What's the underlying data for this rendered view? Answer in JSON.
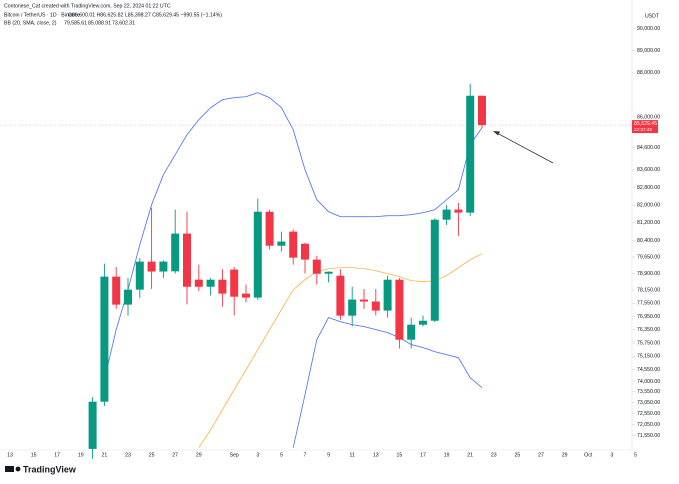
{
  "chart_data": {
    "type": "candlestick",
    "title": "Contonese_Cat created with TradingView.com, Sep 22, 2024 01:22 UTC",
    "subtitle": "Bitcoin / TetherUS · 1D · Binance",
    "ohlc_legend": "O86,600.01 H86,625.82 L85,398.27 C85,629.45 −990.55 (−1.14%)",
    "indicator": "BB (20, SMA, close, 2)",
    "indicator_values": [
      {
        "label": "79,585.61",
        "color": "#ff9800"
      },
      {
        "label": "85,088.91",
        "color": "#2962ff"
      },
      {
        "label": "73,602.31",
        "color": "#2962ff"
      }
    ],
    "y_axis_label": "USDT",
    "price_tag_label": "85,629.45",
    "countdown": "22:37:48",
    "logo": "TradingView",
    "categories": [
      "13",
      null,
      "15",
      null,
      "17",
      null,
      "19",
      null,
      "21",
      null,
      "23",
      null,
      "25",
      null,
      "27",
      null,
      "29",
      null,
      null,
      "Sep",
      null,
      "3",
      null,
      "5",
      null,
      "7",
      null,
      "9",
      null,
      "11",
      null,
      "13",
      null,
      "15",
      null,
      "17",
      null,
      "19",
      null,
      "21",
      null,
      "23",
      null,
      "25",
      null,
      "27",
      null,
      "29",
      null,
      "Oct",
      null,
      "3",
      null,
      "5"
    ],
    "up_color": "#089981",
    "down_color": "#f23645",
    "open": [
      null,
      null,
      null,
      null,
      null,
      null,
      null,
      70950,
      73090,
      78760,
      77490,
      78170,
      79440,
      78990,
      79000,
      80710,
      78620,
      78300,
      78620,
      79080,
      77990,
      77810,
      81700,
      80160,
      80800,
      80250,
      79530,
      78890,
      78800,
      76990,
      77720,
      77630,
      77220,
      78620,
      75900,
      76580,
      76760,
      81340,
      81800,
      81660,
      86960,
      null,
      null,
      null,
      null,
      null,
      null,
      null,
      null,
      null,
      null,
      null,
      null,
      null
    ],
    "high": [
      null,
      null,
      null,
      null,
      null,
      null,
      null,
      73300,
      79350,
      79200,
      78700,
      79600,
      81880,
      79500,
      81800,
      81700,
      79300,
      78700,
      79100,
      79200,
      78400,
      82300,
      81800,
      80800,
      80900,
      80300,
      79700,
      79000,
      79100,
      78300,
      78200,
      78200,
      78800,
      78700,
      76900,
      77000,
      81400,
      82000,
      82100,
      87500,
      86960,
      null,
      null,
      null,
      null,
      null,
      null,
      null,
      null,
      null,
      null,
      null,
      null,
      null
    ],
    "low": [
      null,
      null,
      null,
      null,
      null,
      null,
      null,
      70500,
      72900,
      77300,
      77000,
      77800,
      78200,
      78700,
      78900,
      77500,
      78100,
      77900,
      77400,
      77000,
      77600,
      77700,
      80000,
      79900,
      79300,
      78900,
      78400,
      78500,
      76800,
      76500,
      77300,
      77000,
      76900,
      75500,
      75500,
      76500,
      76700,
      81100,
      80600,
      81500,
      85500,
      null,
      null,
      null,
      null,
      null,
      null,
      null,
      null,
      null,
      null,
      null,
      null,
      null
    ],
    "close": [
      null,
      null,
      null,
      null,
      null,
      null,
      null,
      73090,
      78760,
      77490,
      78170,
      79440,
      78990,
      79440,
      80710,
      78300,
      78300,
      78620,
      77990,
      77850,
      77810,
      81700,
      80160,
      80350,
      79620,
      79530,
      78890,
      78980,
      76990,
      77720,
      77630,
      77220,
      78620,
      75900,
      76580,
      76760,
      81340,
      81800,
      81660,
      86960,
      85629.45,
      null,
      null,
      null,
      null,
      null,
      null,
      null,
      null,
      null,
      null,
      null,
      null,
      null
    ],
    "series": [
      {
        "name": "Upper",
        "color": "#5b7cf0",
        "values": [
          null,
          null,
          null,
          null,
          null,
          null,
          null,
          null,
          74087,
          76356,
          78169,
          80209,
          82022,
          83382,
          84289,
          85195,
          85875,
          86419,
          86781,
          86872,
          86918,
          87099,
          86872,
          86419,
          85422,
          83609,
          82249,
          81705,
          81478,
          81478,
          81478,
          81478,
          81523,
          81523,
          81569,
          81659,
          81795,
          82249,
          82702,
          84742,
          85512,
          null,
          null,
          null,
          null,
          null,
          null,
          null,
          null,
          null,
          null,
          null,
          null,
          null
        ]
      },
      {
        "name": "Basis",
        "color": "#ffa726",
        "values": [
          null,
          null,
          null,
          null,
          null,
          null,
          null,
          null,
          null,
          null,
          null,
          null,
          null,
          null,
          null,
          null,
          71006,
          71822,
          72729,
          73636,
          74542,
          75449,
          76356,
          77262,
          78169,
          78622,
          78985,
          79121,
          79166,
          79166,
          79121,
          79030,
          78894,
          78758,
          78577,
          78532,
          78577,
          78804,
          79166,
          79528,
          79800,
          null,
          null,
          null,
          null,
          null,
          null,
          null,
          null,
          null,
          null,
          null,
          null,
          null
        ]
      },
      {
        "name": "Lower",
        "color": "#5b7cf0",
        "values": [
          null,
          null,
          null,
          null,
          null,
          null,
          null,
          null,
          null,
          null,
          null,
          null,
          null,
          null,
          null,
          null,
          null,
          null,
          null,
          null,
          null,
          null,
          null,
          null,
          71006,
          73409,
          75902,
          76900,
          76718,
          76582,
          76492,
          76356,
          76220,
          75993,
          75676,
          75540,
          75358,
          75222,
          75086,
          74179,
          73726,
          null,
          null,
          null,
          null,
          null,
          null,
          null,
          null,
          null,
          null,
          null,
          null,
          null
        ]
      }
    ],
    "ylim": [
      70900,
      91300
    ],
    "yticks": [
      {
        "value": 90000,
        "label": "90,000.00"
      },
      {
        "value": 89000,
        "label": "89,000.00"
      },
      {
        "value": 88000,
        "label": "88,000.00"
      },
      {
        "value": 86000,
        "label": "86,000.00"
      },
      {
        "value": 84600,
        "label": "84,600.00"
      },
      {
        "value": 83600,
        "label": "83,600.00"
      },
      {
        "value": 82800,
        "label": "82,800.00"
      },
      {
        "value": 82000,
        "label": "82,000.00"
      },
      {
        "value": 81200,
        "label": "81,200.00"
      },
      {
        "value": 80400,
        "label": "80,400.00"
      },
      {
        "value": 79650,
        "label": "79,650.00"
      },
      {
        "value": 78900,
        "label": "78,900.00"
      },
      {
        "value": 78150,
        "label": "78,150.00"
      },
      {
        "value": 77550,
        "label": "77,550.00"
      },
      {
        "value": 76950,
        "label": "76,950.00"
      },
      {
        "value": 76350,
        "label": "76,350.00"
      },
      {
        "value": 75750,
        "label": "75,750.00"
      },
      {
        "value": 75150,
        "label": "75,150.00"
      },
      {
        "value": 74550,
        "label": "74,550.00"
      },
      {
        "value": 74000,
        "label": "74,000.00"
      },
      {
        "value": 73550,
        "label": "73,550.00"
      },
      {
        "value": 73050,
        "label": "73,050.00"
      },
      {
        "value": 72550,
        "label": "72,550.00"
      },
      {
        "value": 72050,
        "label": "72,050.00"
      },
      {
        "value": 71550,
        "label": "71,550.00"
      }
    ],
    "grid": false
  }
}
